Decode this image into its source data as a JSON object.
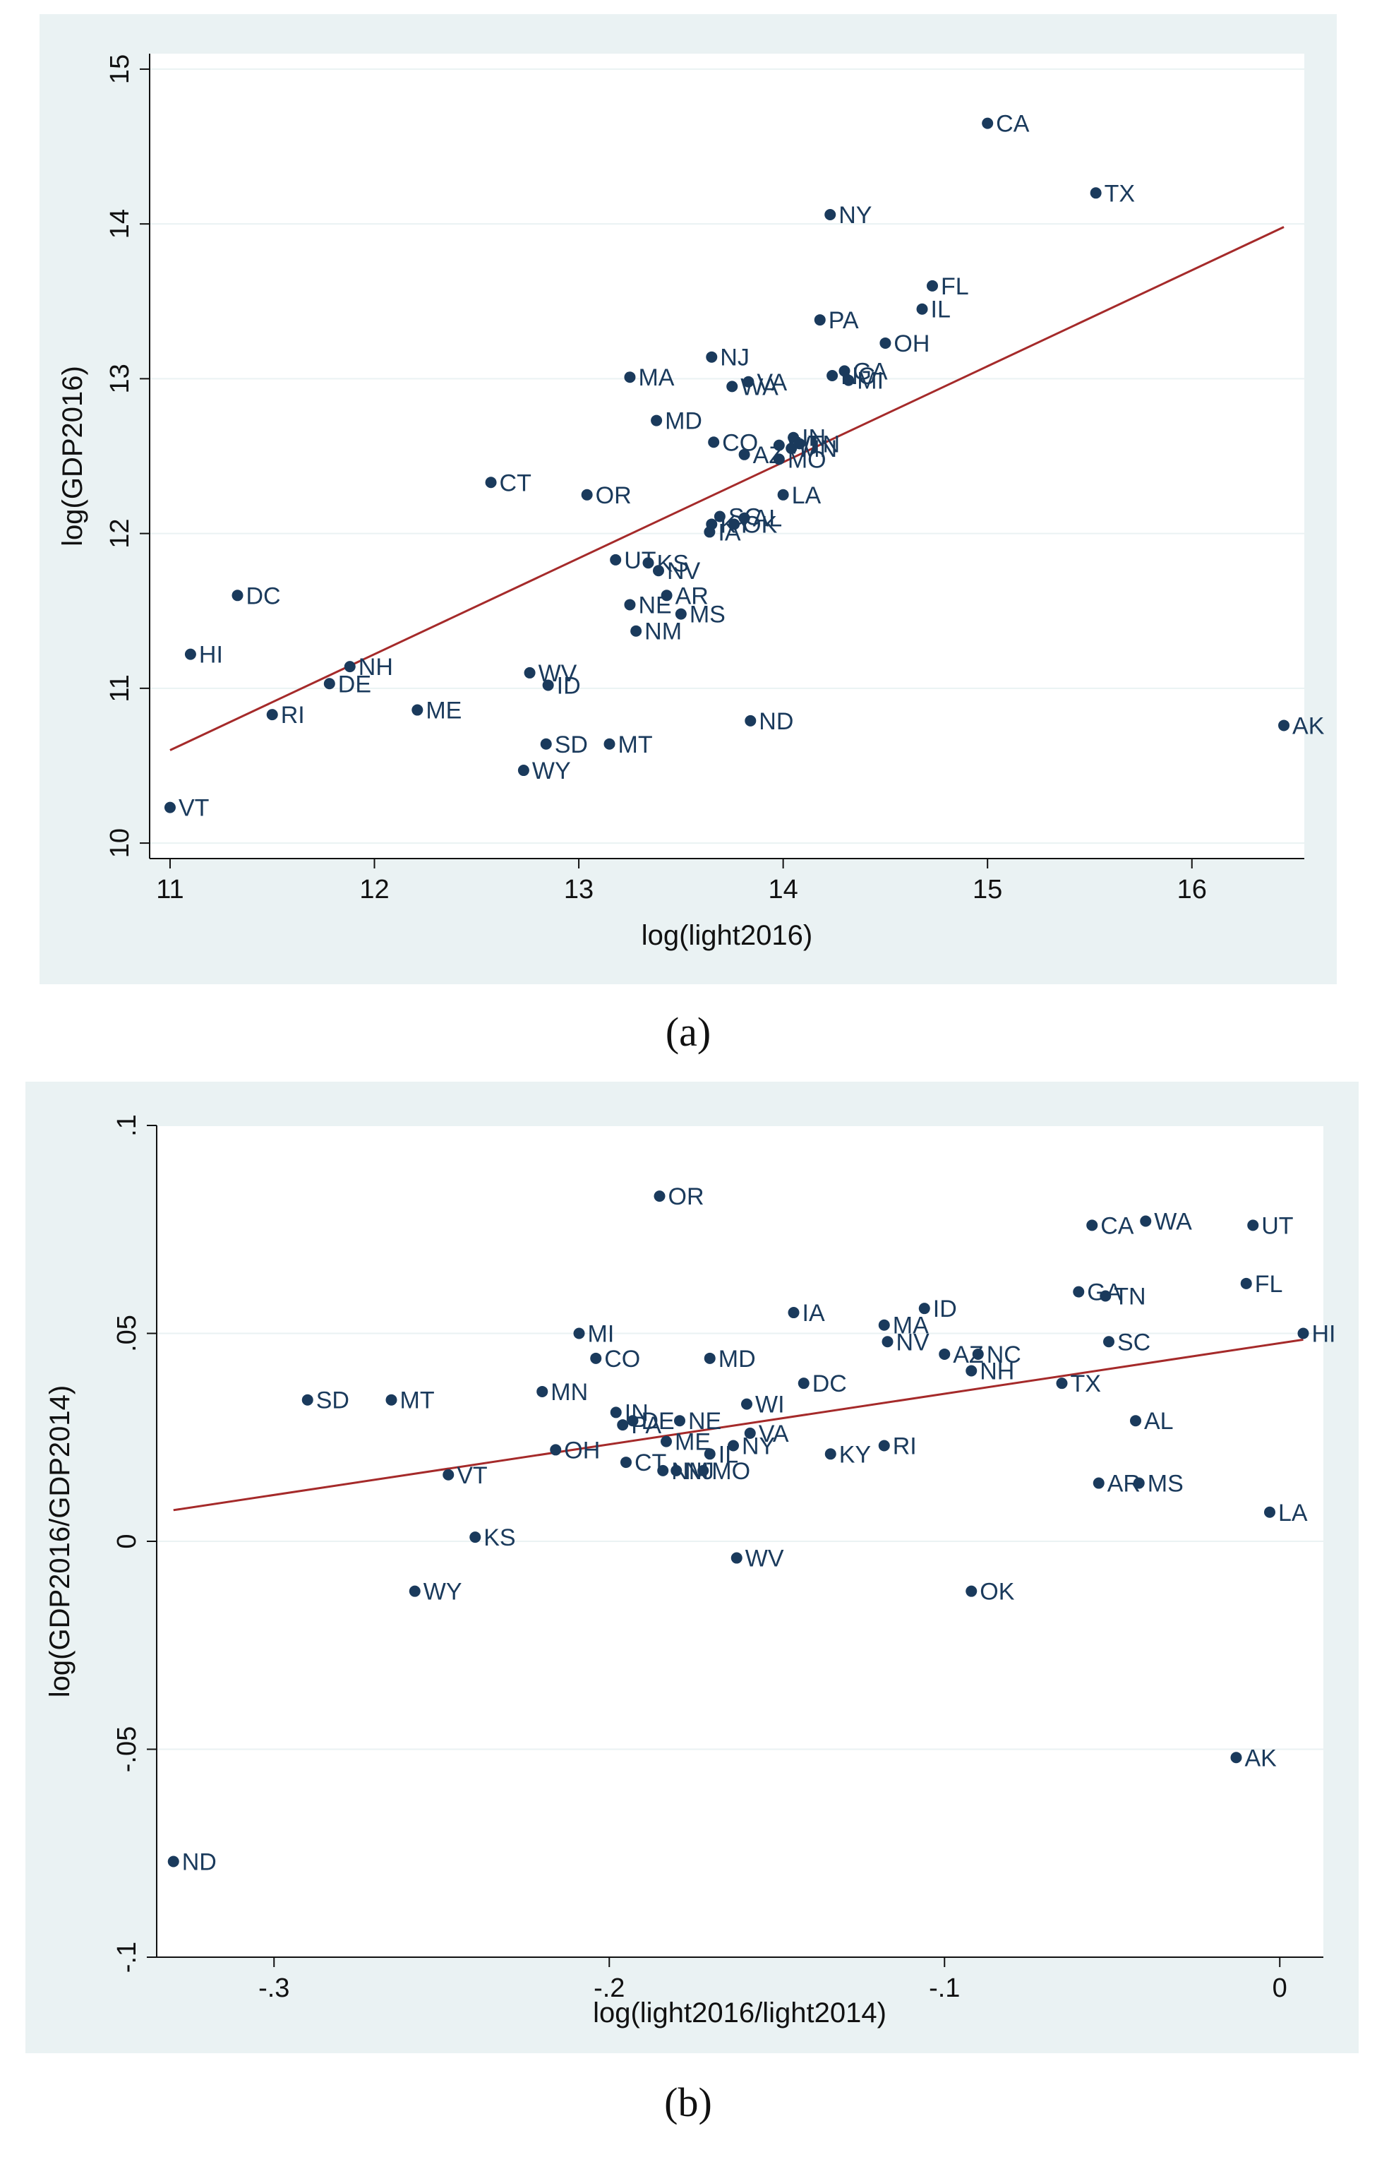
{
  "captions": [
    "(a)",
    "(b)"
  ],
  "colors": {
    "panel_background": "#eaf2f3",
    "plot_background": "#ffffff",
    "marker": "#1a3a5c",
    "fit_line": "#a52a2a",
    "axis_text": "#111111"
  },
  "chart_data": [
    {
      "type": "scatter",
      "id": "a",
      "title": "",
      "xlabel": "log(light2016)",
      "ylabel": "log(GDP2016)",
      "xlim": [
        10.9,
        16.55
      ],
      "ylim": [
        9.9,
        15.1
      ],
      "xticks": [
        11,
        12,
        13,
        14,
        15,
        16
      ],
      "xtick_labels": [
        "11",
        "12",
        "13",
        "14",
        "15",
        "16"
      ],
      "yticks": [
        10,
        11,
        12,
        13,
        14,
        15
      ],
      "ytick_labels": [
        "10",
        "11",
        "12",
        "13",
        "14",
        "15"
      ],
      "grid": true,
      "fit_line": {
        "x": [
          11.0,
          16.45
        ],
        "y": [
          10.6,
          13.98
        ]
      },
      "points": [
        {
          "label": "CA",
          "x": 15.0,
          "y": 14.65
        },
        {
          "label": "TX",
          "x": 15.53,
          "y": 14.2
        },
        {
          "label": "NY",
          "x": 14.23,
          "y": 14.06
        },
        {
          "label": "FL",
          "x": 14.73,
          "y": 13.6
        },
        {
          "label": "IL",
          "x": 14.68,
          "y": 13.45
        },
        {
          "label": "PA",
          "x": 14.18,
          "y": 13.38
        },
        {
          "label": "OH",
          "x": 14.5,
          "y": 13.23
        },
        {
          "label": "NJ",
          "x": 13.65,
          "y": 13.14
        },
        {
          "label": "MA",
          "x": 13.25,
          "y": 13.01
        },
        {
          "label": "GA",
          "x": 14.3,
          "y": 13.05
        },
        {
          "label": "NC",
          "x": 14.24,
          "y": 13.02
        },
        {
          "label": "MI",
          "x": 14.32,
          "y": 12.99
        },
        {
          "label": "VA",
          "x": 13.83,
          "y": 12.98
        },
        {
          "label": "WA",
          "x": 13.75,
          "y": 12.95
        },
        {
          "label": "MD",
          "x": 13.38,
          "y": 12.73
        },
        {
          "label": "IN",
          "x": 14.05,
          "y": 12.62
        },
        {
          "label": "TN",
          "x": 14.08,
          "y": 12.58
        },
        {
          "label": "CO",
          "x": 13.66,
          "y": 12.59
        },
        {
          "label": "WI",
          "x": 13.98,
          "y": 12.57
        },
        {
          "label": "MN",
          "x": 14.04,
          "y": 12.55
        },
        {
          "label": "AZ",
          "x": 13.81,
          "y": 12.51
        },
        {
          "label": "MO",
          "x": 13.98,
          "y": 12.48
        },
        {
          "label": "CT",
          "x": 12.57,
          "y": 12.33
        },
        {
          "label": "OR",
          "x": 13.04,
          "y": 12.25
        },
        {
          "label": "LA",
          "x": 14.0,
          "y": 12.25
        },
        {
          "label": "SC",
          "x": 13.69,
          "y": 12.11
        },
        {
          "label": "AL",
          "x": 13.81,
          "y": 12.1
        },
        {
          "label": "KY",
          "x": 13.65,
          "y": 12.06
        },
        {
          "label": "OK",
          "x": 13.76,
          "y": 12.06
        },
        {
          "label": "IA",
          "x": 13.64,
          "y": 12.01
        },
        {
          "label": "UT",
          "x": 13.18,
          "y": 11.83
        },
        {
          "label": "KS",
          "x": 13.34,
          "y": 11.81
        },
        {
          "label": "NV",
          "x": 13.39,
          "y": 11.76
        },
        {
          "label": "DC",
          "x": 11.33,
          "y": 11.6
        },
        {
          "label": "AR",
          "x": 13.43,
          "y": 11.6
        },
        {
          "label": "NE",
          "x": 13.25,
          "y": 11.54
        },
        {
          "label": "MS",
          "x": 13.5,
          "y": 11.48
        },
        {
          "label": "NM",
          "x": 13.28,
          "y": 11.37
        },
        {
          "label": "HI",
          "x": 11.1,
          "y": 11.22
        },
        {
          "label": "NH",
          "x": 11.88,
          "y": 11.14
        },
        {
          "label": "WV",
          "x": 12.76,
          "y": 11.1
        },
        {
          "label": "DE",
          "x": 11.78,
          "y": 11.03
        },
        {
          "label": "ID",
          "x": 12.85,
          "y": 11.02
        },
        {
          "label": "ME",
          "x": 12.21,
          "y": 10.86
        },
        {
          "label": "RI",
          "x": 11.5,
          "y": 10.83
        },
        {
          "label": "ND",
          "x": 13.84,
          "y": 10.79
        },
        {
          "label": "AK",
          "x": 16.45,
          "y": 10.76
        },
        {
          "label": "SD",
          "x": 12.84,
          "y": 10.64
        },
        {
          "label": "MT",
          "x": 13.15,
          "y": 10.64
        },
        {
          "label": "WY",
          "x": 12.73,
          "y": 10.47
        },
        {
          "label": "VT",
          "x": 11.0,
          "y": 10.23
        }
      ]
    },
    {
      "type": "scatter",
      "id": "b",
      "title": "",
      "xlabel": "log(light2016/light2014)",
      "ylabel": "log(GDP2016/GDP2014)",
      "xlim": [
        -0.335,
        0.013
      ],
      "ylim": [
        -0.1,
        0.1
      ],
      "xticks": [
        -0.3,
        -0.2,
        -0.1,
        0
      ],
      "xtick_labels": [
        "-.3",
        "-.2",
        "-.1",
        "0"
      ],
      "yticks": [
        -0.1,
        -0.05,
        0,
        0.05,
        0.1
      ],
      "ytick_labels": [
        "-.1",
        "-.05",
        "0",
        ".05",
        ".1"
      ],
      "grid": true,
      "fit_line": {
        "x": [
          -0.33,
          0.007
        ],
        "y": [
          0.0075,
          0.0485
        ]
      },
      "points": [
        {
          "label": "OR",
          "x": -0.185,
          "y": 0.083
        },
        {
          "label": "WA",
          "x": -0.04,
          "y": 0.077
        },
        {
          "label": "UT",
          "x": -0.008,
          "y": 0.076
        },
        {
          "label": "CA",
          "x": -0.056,
          "y": 0.076
        },
        {
          "label": "FL",
          "x": -0.01,
          "y": 0.062
        },
        {
          "label": "GA",
          "x": -0.06,
          "y": 0.06
        },
        {
          "label": "TN",
          "x": -0.052,
          "y": 0.059
        },
        {
          "label": "ID",
          "x": -0.106,
          "y": 0.056
        },
        {
          "label": "IA",
          "x": -0.145,
          "y": 0.055
        },
        {
          "label": "MA",
          "x": -0.118,
          "y": 0.052
        },
        {
          "label": "MI",
          "x": -0.209,
          "y": 0.05
        },
        {
          "label": "HI",
          "x": 0.007,
          "y": 0.05
        },
        {
          "label": "NV",
          "x": -0.117,
          "y": 0.048
        },
        {
          "label": "SC",
          "x": -0.051,
          "y": 0.048
        },
        {
          "label": "AZ",
          "x": -0.1,
          "y": 0.045
        },
        {
          "label": "NC",
          "x": -0.09,
          "y": 0.045
        },
        {
          "label": "CO",
          "x": -0.204,
          "y": 0.044
        },
        {
          "label": "MD",
          "x": -0.17,
          "y": 0.044
        },
        {
          "label": "NH",
          "x": -0.092,
          "y": 0.041
        },
        {
          "label": "DC",
          "x": -0.142,
          "y": 0.038
        },
        {
          "label": "TX",
          "x": -0.065,
          "y": 0.038
        },
        {
          "label": "MN",
          "x": -0.22,
          "y": 0.036
        },
        {
          "label": "SD",
          "x": -0.29,
          "y": 0.034
        },
        {
          "label": "MT",
          "x": -0.265,
          "y": 0.034
        },
        {
          "label": "WI",
          "x": -0.159,
          "y": 0.033
        },
        {
          "label": "IN",
          "x": -0.198,
          "y": 0.031
        },
        {
          "label": "AL",
          "x": -0.043,
          "y": 0.029
        },
        {
          "label": "DE",
          "x": -0.193,
          "y": 0.029
        },
        {
          "label": "PA",
          "x": -0.196,
          "y": 0.028
        },
        {
          "label": "NE",
          "x": -0.179,
          "y": 0.029
        },
        {
          "label": "VA",
          "x": -0.158,
          "y": 0.026
        },
        {
          "label": "ME",
          "x": -0.183,
          "y": 0.024
        },
        {
          "label": "NY",
          "x": -0.163,
          "y": 0.023
        },
        {
          "label": "RI",
          "x": -0.118,
          "y": 0.023
        },
        {
          "label": "OH",
          "x": -0.216,
          "y": 0.022
        },
        {
          "label": "KY",
          "x": -0.134,
          "y": 0.021
        },
        {
          "label": "IL",
          "x": -0.17,
          "y": 0.021
        },
        {
          "label": "CT",
          "x": -0.195,
          "y": 0.019
        },
        {
          "label": "NJ",
          "x": -0.18,
          "y": 0.017
        },
        {
          "label": "NM",
          "x": -0.184,
          "y": 0.017
        },
        {
          "label": "MO",
          "x": -0.172,
          "y": 0.017
        },
        {
          "label": "VT",
          "x": -0.248,
          "y": 0.016
        },
        {
          "label": "AR",
          "x": -0.054,
          "y": 0.014
        },
        {
          "label": "MS",
          "x": -0.042,
          "y": 0.014
        },
        {
          "label": "LA",
          "x": -0.003,
          "y": 0.007
        },
        {
          "label": "KS",
          "x": -0.24,
          "y": 0.001
        },
        {
          "label": "WV",
          "x": -0.162,
          "y": -0.004
        },
        {
          "label": "WY",
          "x": -0.258,
          "y": -0.012
        },
        {
          "label": "OK",
          "x": -0.092,
          "y": -0.012
        },
        {
          "label": "AK",
          "x": -0.013,
          "y": -0.052
        },
        {
          "label": "ND",
          "x": -0.33,
          "y": -0.077
        }
      ]
    }
  ]
}
